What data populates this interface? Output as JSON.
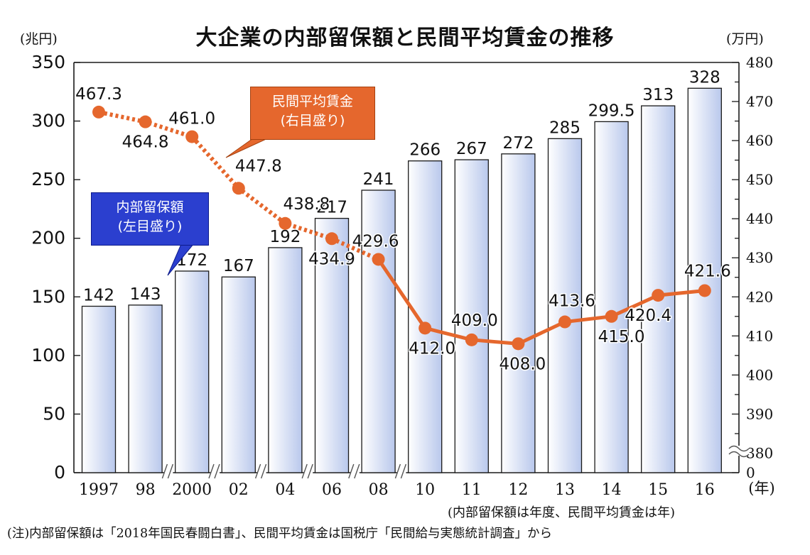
{
  "title": "大企業の内部留保額と民間平均賃金の推移",
  "left_unit": "(兆円)",
  "right_unit": "(万円)",
  "x_unit": "(年)",
  "callouts": {
    "retained": {
      "line1": "内部留保額",
      "line2": "(左目盛り)"
    },
    "wage": {
      "line1": "民間平均賃金",
      "line2": "(右目盛り)"
    }
  },
  "notes": {
    "basis": "(内部留保額は年度、民間平均賃金は年)",
    "source": "(注)内部留保額は「2018年国民春闘白書」、民間平均賃金は国税庁「民間給与実態統計調査」から"
  },
  "colors": {
    "bar_edge": "#1a1a1a",
    "bar_fill_light": "#ffffff",
    "bar_fill_dark": "#b9c8ec",
    "line": "#e5672d",
    "callout_blue": "#2b3fcf",
    "callout_orange": "#e5672d"
  },
  "chart_data": {
    "type": "bar",
    "categories": [
      "1997",
      "98",
      "2000",
      "02",
      "04",
      "06",
      "08",
      "10",
      "11",
      "12",
      "13",
      "14",
      "15",
      "16"
    ],
    "series": [
      {
        "name": "内部留保額",
        "axis": "left",
        "type": "bar",
        "values": [
          142,
          143,
          172,
          167,
          192,
          217,
          241,
          266,
          267,
          272,
          285,
          299.5,
          313,
          328
        ],
        "labels": [
          "142",
          "143",
          "172",
          "167",
          "192",
          "217",
          "241",
          "266",
          "267",
          "272",
          "285",
          "299.5",
          "313",
          "328"
        ]
      },
      {
        "name": "民間平均賃金",
        "axis": "right",
        "type": "line",
        "values": [
          467.3,
          464.8,
          461.0,
          447.8,
          438.8,
          434.9,
          429.6,
          412.0,
          409.0,
          408.0,
          413.6,
          415.0,
          420.4,
          421.6
        ],
        "labels": [
          "467.3",
          "464.8",
          "461.0",
          "447.8",
          "438.8",
          "434.9",
          "429.6",
          "412.0",
          "409.0",
          "408.0",
          "413.6",
          "415.0",
          "420.4",
          "421.6"
        ]
      }
    ],
    "left_axis": {
      "ylim": [
        0,
        350
      ],
      "ticks": [
        "0",
        "50",
        "100",
        "150",
        "200",
        "250",
        "300",
        "350"
      ]
    },
    "right_axis": {
      "ylim": [
        375,
        480
      ],
      "axis_break": true,
      "ticks": [
        "0",
        "380",
        "390",
        "400",
        "410",
        "420",
        "430",
        "440",
        "450",
        "460",
        "470",
        "480"
      ]
    },
    "x_breaks_after": [
      "98",
      "2000",
      "02",
      "04",
      "06",
      "08"
    ],
    "grid": false,
    "legend": "callout-boxes"
  }
}
